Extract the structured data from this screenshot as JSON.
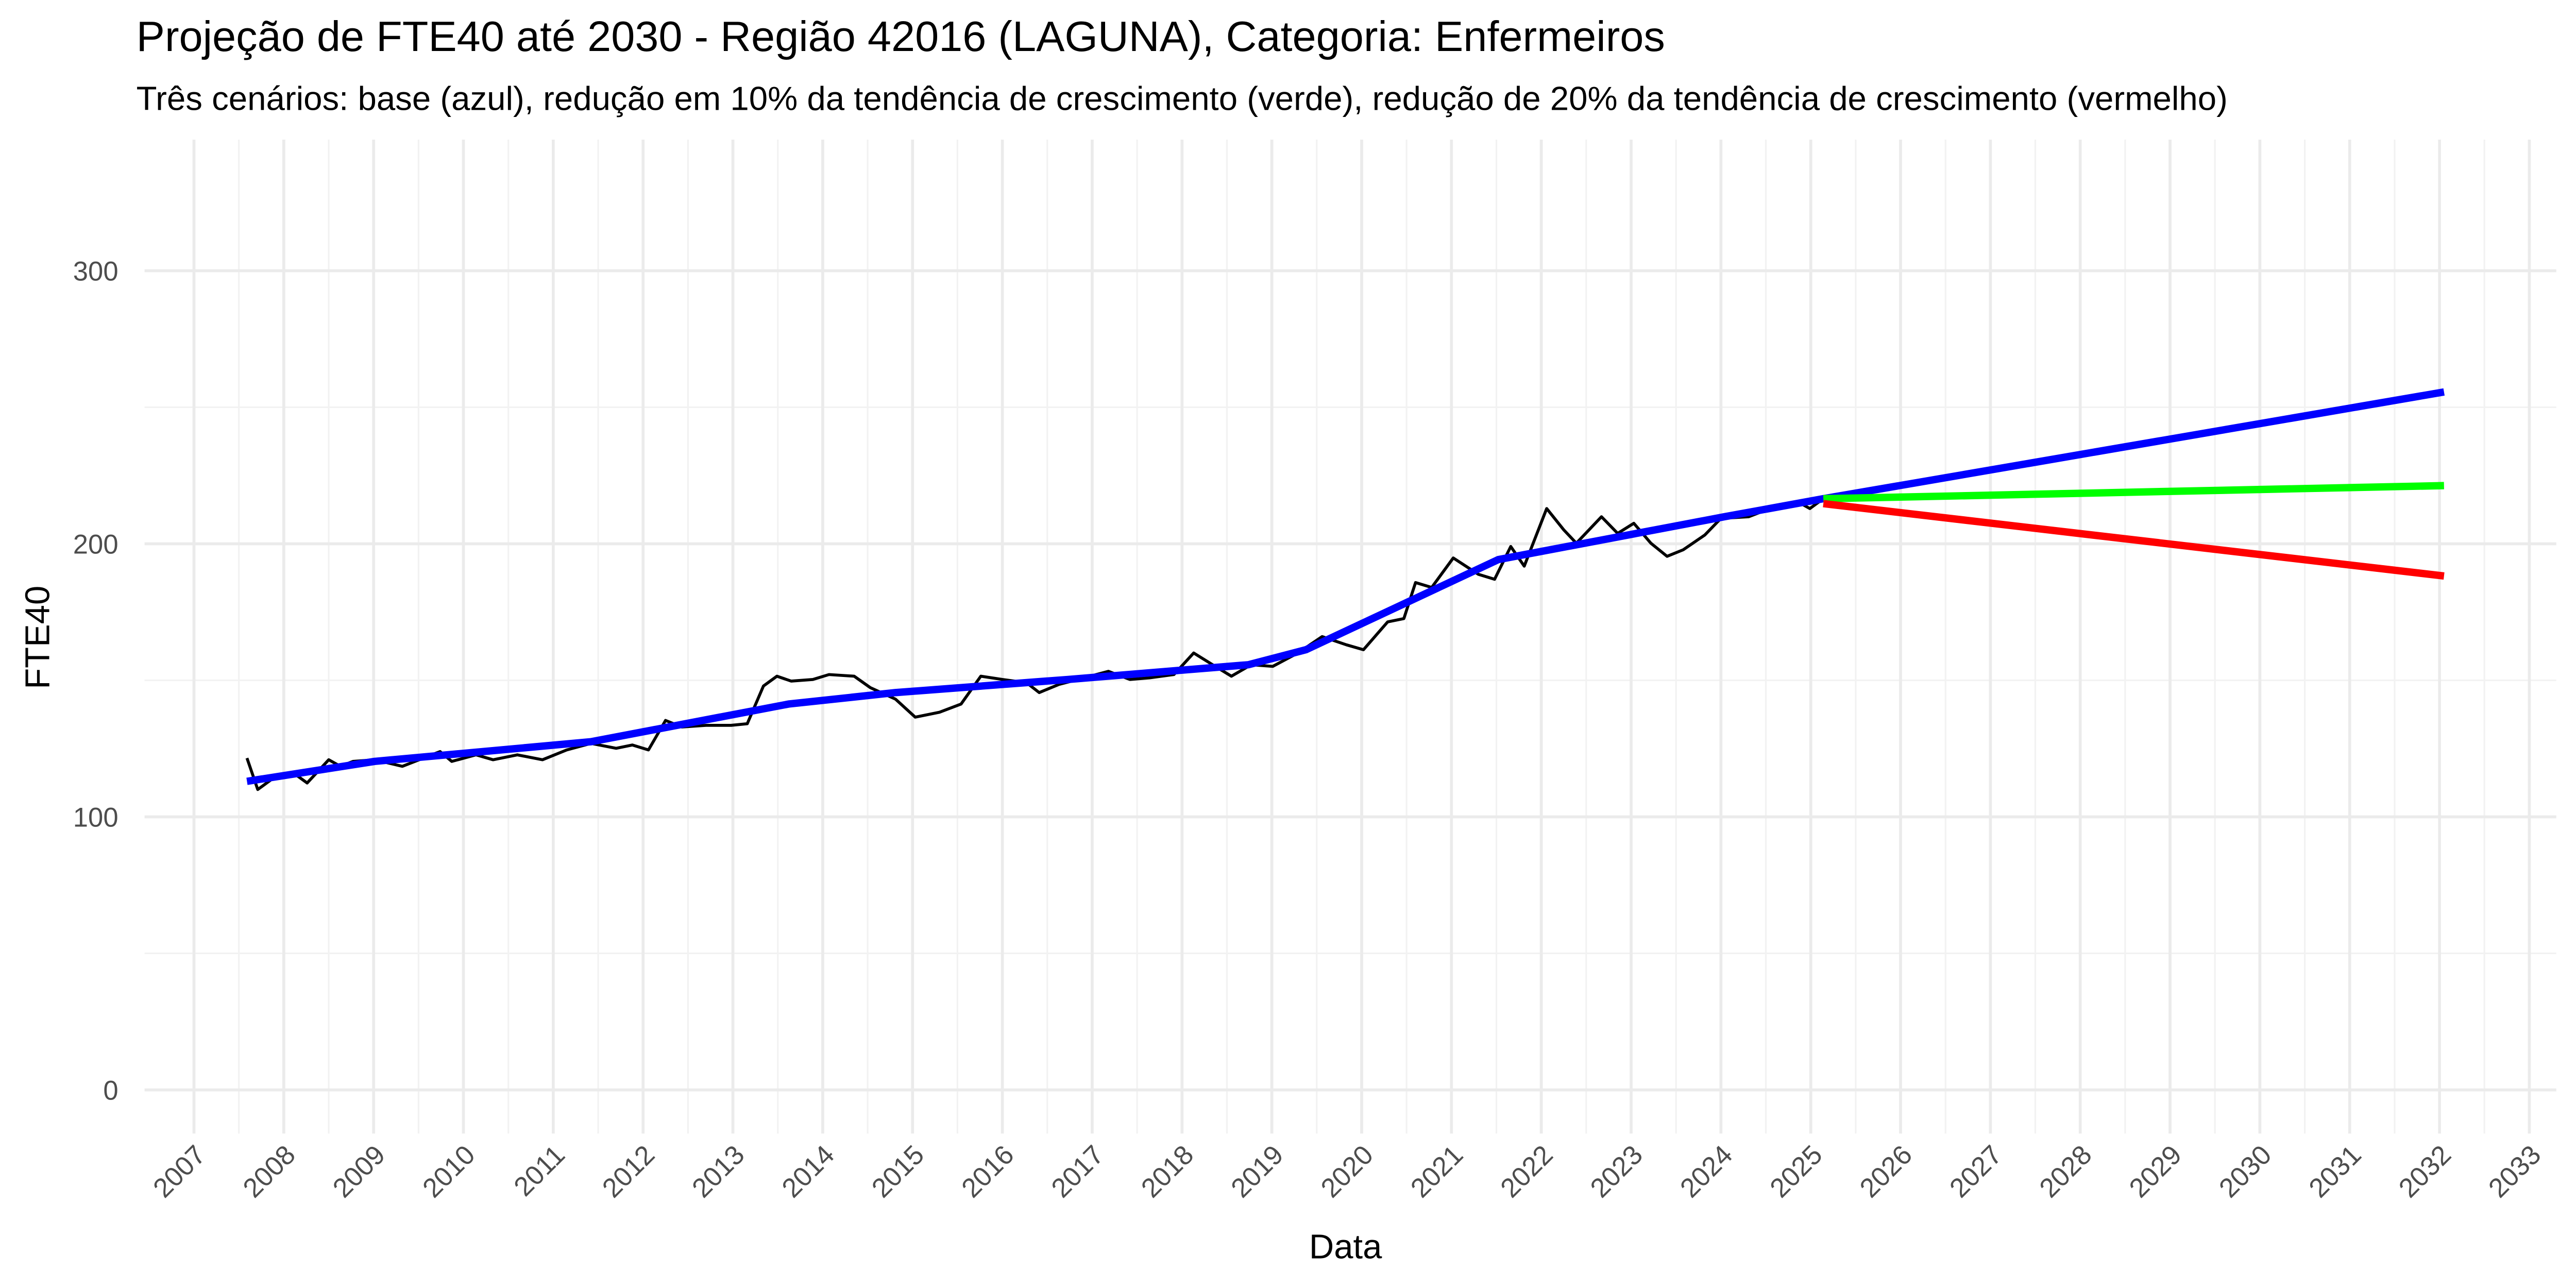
{
  "chart_data": {
    "type": "line",
    "title": "Projeção de FTE40 até 2030 - Região 42016 (LAGUNA), Categoria: Enfermeiros",
    "subtitle": "Três cenários: base (azul), redução em 10% da tendência de crescimento (verde), redução de 20% da tendência de crescimento (vermelho)",
    "x_label": "Data",
    "y_label": "FTE40",
    "xlim": [
      2006.45,
      2033.3
    ],
    "ylim": [
      -16,
      348
    ],
    "xticks": [
      2007,
      2008,
      2009,
      2010,
      2011,
      2012,
      2013,
      2014,
      2015,
      2016,
      2017,
      2018,
      2019,
      2020,
      2021,
      2022,
      2023,
      2024,
      2025,
      2026,
      2027,
      2028,
      2029,
      2030,
      2031,
      2032,
      2033
    ],
    "yticks": [
      0,
      100,
      200,
      300
    ],
    "grid": true,
    "minor_grid": true,
    "series": [
      {
        "color": "#000000",
        "width": 1.8,
        "x": [
          2007.59,
          2007.71,
          2007.86,
          2008.13,
          2008.26,
          2008.5,
          2008.63,
          2008.77,
          2009.01,
          2009.32,
          2009.74,
          2009.87,
          2010.14,
          2010.33,
          2010.6,
          2010.88,
          2011.15,
          2011.42,
          2011.7,
          2011.88,
          2012.06,
          2012.25,
          2012.43,
          2012.7,
          2012.98,
          2013.16,
          2013.34,
          2013.49,
          2013.65,
          2013.89,
          2014.07,
          2014.35,
          2014.53,
          2014.81,
          2015.03,
          2015.3,
          2015.54,
          2015.76,
          2016.0,
          2016.27,
          2016.41,
          2016.63,
          2016.91,
          2017.18,
          2017.42,
          2017.64,
          2017.91,
          2018.13,
          2018.37,
          2018.55,
          2018.77,
          2019.01,
          2019.29,
          2019.56,
          2019.83,
          2020.02,
          2020.29,
          2020.47,
          2020.6,
          2020.78,
          2021.02,
          2021.3,
          2021.48,
          2021.66,
          2021.81,
          2022.06,
          2022.25,
          2022.39,
          2022.67,
          2022.85,
          2023.03,
          2023.22,
          2023.4,
          2023.58,
          2023.82,
          2024.0,
          2024.31,
          2024.59,
          2024.86,
          2024.99,
          2025.14
        ],
        "values": [
          121.5,
          110,
          113.6,
          115.5,
          112.4,
          120.9,
          118.5,
          120.3,
          120.9,
          118.5,
          123.9,
          120.3,
          122.7,
          120.9,
          122.7,
          120.9,
          124.5,
          126.9,
          125.1,
          126.3,
          124.5,
          135.3,
          132.9,
          133.5,
          133.5,
          134.1,
          147.9,
          151.5,
          149.7,
          150.3,
          152.1,
          151.5,
          147.3,
          143.1,
          136.5,
          138.3,
          141.3,
          151.5,
          150.3,
          149.1,
          145.5,
          148.5,
          150.9,
          153.3,
          150.3,
          150.9,
          152.1,
          160.0,
          155.1,
          151.5,
          155.7,
          155.1,
          160.0,
          166.0,
          163.0,
          161.2,
          171.4,
          172.6,
          185.8,
          184.0,
          194.8,
          188.8,
          187.0,
          199.0,
          191.8,
          212.9,
          205.1,
          200.2,
          209.9,
          203.8,
          207.5,
          200.2,
          195.4,
          197.8,
          203.2,
          209.3,
          209.9,
          213.5,
          215.3,
          212.9,
          216.5
        ]
      },
      {
        "color": "#0000ff",
        "width": 4.5,
        "x": [
          2007.59,
          2009.01,
          2011.42,
          2013.62,
          2014.81,
          2016.73,
          2018.74,
          2019.38,
          2021.52,
          2024.04,
          2025.14,
          2032.05
        ],
        "values": [
          113.0,
          120.3,
          127.5,
          141.3,
          145.5,
          150.3,
          155.7,
          161.2,
          194.2,
          209.9,
          216.5,
          255.6
        ]
      },
      {
        "color": "#00ff00",
        "width": 4.5,
        "x": [
          2025.14,
          2032.05
        ],
        "values": [
          216.5,
          221.3
        ]
      },
      {
        "color": "#ff0000",
        "width": 4.5,
        "x": [
          2025.14,
          2032.05
        ],
        "values": [
          214.7,
          188.2
        ]
      }
    ]
  }
}
